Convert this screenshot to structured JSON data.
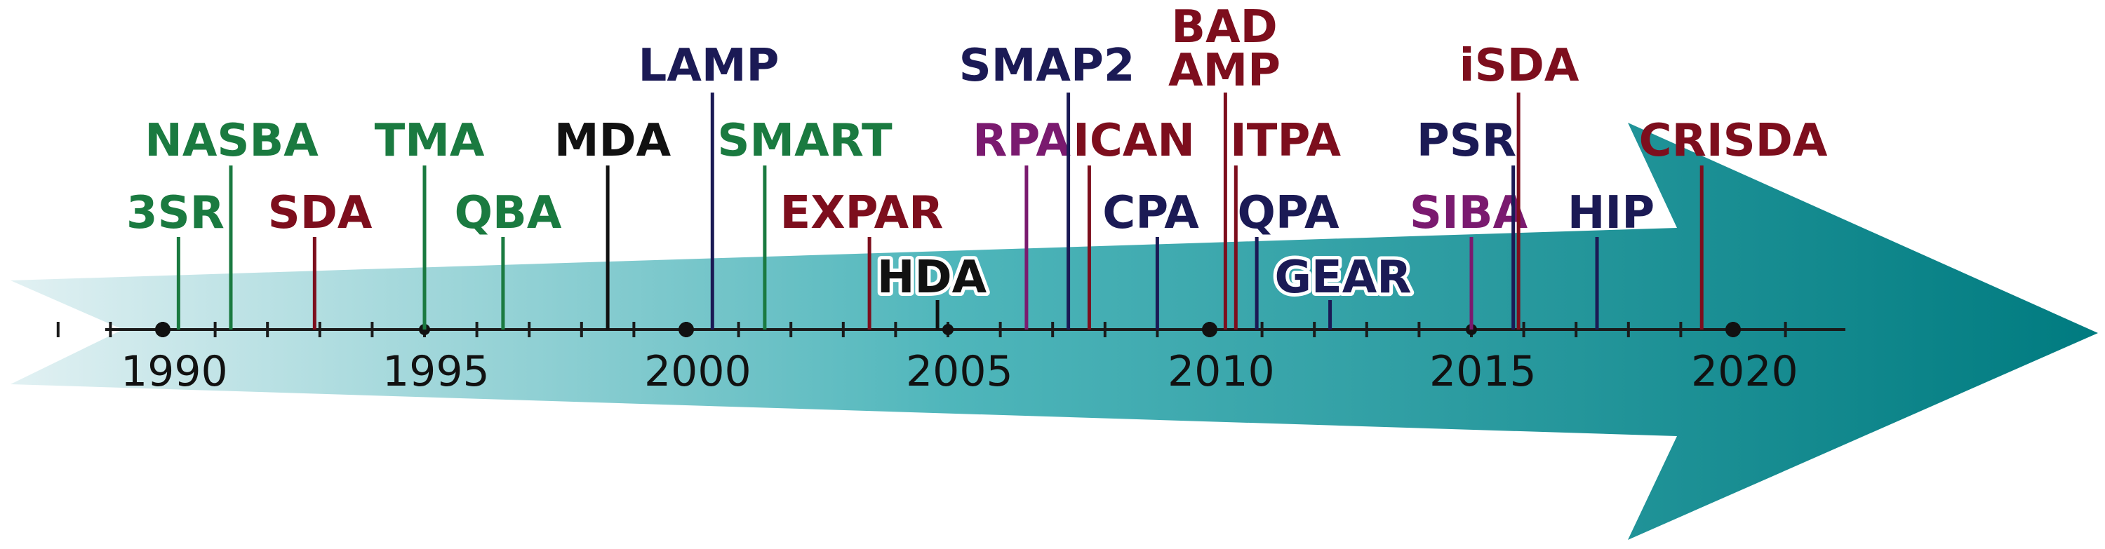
{
  "colors": {
    "green": "#1a7a40",
    "red": "#7d0e1d",
    "navy": "#1b1a55",
    "purple": "#7a1a6f",
    "black": "#111111",
    "arrow_dark": "#007b80",
    "arrow_light": "#e2f1f3"
  },
  "year_axis": {
    "start": 1988,
    "end": 2021,
    "labeled_years": [
      "1990",
      "1995",
      "2000",
      "2005",
      "2010",
      "2015",
      "2020"
    ],
    "dot_years": [
      1990,
      1995,
      2000,
      2005,
      2010,
      2015,
      2020
    ]
  },
  "methods": [
    {
      "label": "3SR",
      "year": 1990.3,
      "color": "green"
    },
    {
      "label": "NASBA",
      "year": 1991.3,
      "color": "green"
    },
    {
      "label": "SDA",
      "year": 1992.9,
      "color": "red"
    },
    {
      "label": "TMA",
      "year": 1995.0,
      "color": "green"
    },
    {
      "label": "QBA",
      "year": 1996.5,
      "color": "green"
    },
    {
      "label": "MDA",
      "year": 1998.5,
      "color": "black"
    },
    {
      "label": "LAMP",
      "year": 2000.5,
      "color": "navy"
    },
    {
      "label": "SMART",
      "year": 2001.5,
      "color": "green"
    },
    {
      "label": "EXPAR",
      "year": 2003.5,
      "color": "red"
    },
    {
      "label": "HDA",
      "year": 2004.8,
      "color": "black"
    },
    {
      "label": "RPA",
      "year": 2006.5,
      "color": "purple"
    },
    {
      "label": "SMAP2",
      "year": 2007.3,
      "color": "navy"
    },
    {
      "label": "ICAN",
      "year": 2007.7,
      "color": "red"
    },
    {
      "label": "CPA",
      "year": 2009.0,
      "color": "navy"
    },
    {
      "label": "BAD AMP",
      "year": 2010.3,
      "color": "red"
    },
    {
      "label": "ITPA",
      "year": 2010.5,
      "color": "red"
    },
    {
      "label": "QPA",
      "year": 2010.9,
      "color": "navy"
    },
    {
      "label": "GEAR",
      "year": 2012.3,
      "color": "navy"
    },
    {
      "label": "SIBA",
      "year": 2015.0,
      "color": "purple"
    },
    {
      "label": "PSR",
      "year": 2015.8,
      "color": "navy"
    },
    {
      "label": "iSDA",
      "year": 2015.9,
      "color": "red"
    },
    {
      "label": "HIP",
      "year": 2017.4,
      "color": "navy"
    },
    {
      "label": "CRISDA",
      "year": 2019.4,
      "color": "red"
    }
  ]
}
